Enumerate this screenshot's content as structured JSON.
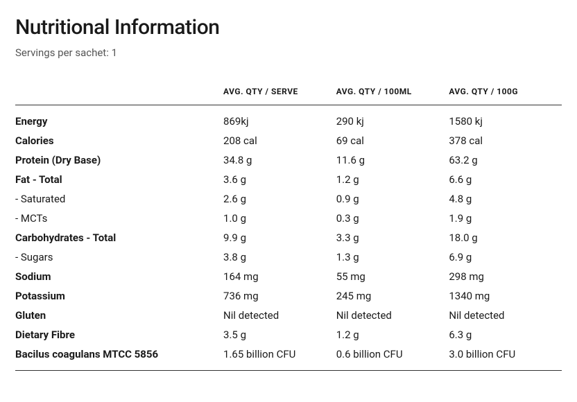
{
  "title": "Nutritional Information",
  "subtitle": "Servings per sachet: 1",
  "columns": [
    "",
    "AVG. QTY / SERVE",
    "AVG. QTY / 100ML",
    "AVG. QTY / 100G"
  ],
  "rows": [
    {
      "label": "Energy",
      "bold": true,
      "serve": "869kj",
      "per100ml": "290 kj",
      "per100g": "1580 kj"
    },
    {
      "label": "Calories",
      "bold": true,
      "serve": "208 cal",
      "per100ml": "69 cal",
      "per100g": "378 cal"
    },
    {
      "label": "Protein (Dry Base)",
      "bold": true,
      "serve": "34.8 g",
      "per100ml": "11.6 g",
      "per100g": "63.2 g"
    },
    {
      "label": "Fat - Total",
      "bold": true,
      "serve": "3.6 g",
      "per100ml": "1.2 g",
      "per100g": "6.6 g"
    },
    {
      "label": "- Saturated",
      "bold": false,
      "serve": "2.6 g",
      "per100ml": "0.9 g",
      "per100g": "4.8 g"
    },
    {
      "label": "- MCTs",
      "bold": false,
      "serve": "1.0 g",
      "per100ml": "0.3 g",
      "per100g": "1.9 g"
    },
    {
      "label": "Carbohydrates - Total",
      "bold": true,
      "serve": "9.9 g",
      "per100ml": "3.3 g",
      "per100g": "18.0 g"
    },
    {
      "label": "- Sugars",
      "bold": false,
      "serve": "3.8 g",
      "per100ml": "1.3 g",
      "per100g": "6.9 g"
    },
    {
      "label": "Sodium",
      "bold": true,
      "serve": "164 mg",
      "per100ml": "55 mg",
      "per100g": "298 mg"
    },
    {
      "label": "Potassium",
      "bold": true,
      "serve": "736 mg",
      "per100ml": "245 mg",
      "per100g": "1340 mg"
    },
    {
      "label": "Gluten",
      "bold": true,
      "serve": "Nil detected",
      "per100ml": "Nil detected",
      "per100g": "Nil detected"
    },
    {
      "label": "Dietary Fibre",
      "bold": true,
      "serve": "3.5 g",
      "per100ml": "1.2 g",
      "per100g": "6.3 g"
    },
    {
      "label": "Bacilus coagulans MTCC 5856",
      "bold": true,
      "serve": "1.65 billion CFU",
      "per100ml": "0.6 billion CFU",
      "per100g": "3.0 billion CFU"
    }
  ]
}
